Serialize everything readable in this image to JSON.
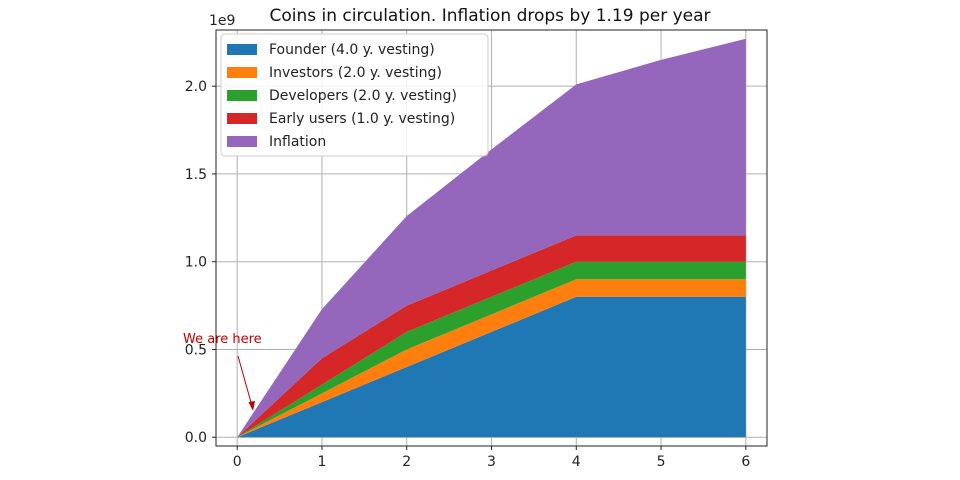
{
  "chart_data": {
    "type": "area",
    "stacked": true,
    "title": "Coins in circulation. Inflation drops by 1.19 per year",
    "y_offset_text": "1e9",
    "xlabel": "",
    "ylabel": "",
    "x": [
      0,
      1,
      2,
      3,
      4,
      5,
      6
    ],
    "xlim": [
      0,
      6
    ],
    "ylim": [
      0,
      2.3
    ],
    "y_scale": 1000000000,
    "x_ticks": [
      "0",
      "1",
      "2",
      "3",
      "4",
      "5",
      "6"
    ],
    "y_ticks": [
      "0.0",
      "0.5",
      "1.0",
      "1.5",
      "2.0"
    ],
    "y_tick_values": [
      0,
      0.5,
      1.0,
      1.5,
      2.0
    ],
    "grid": true,
    "legend_position": "upper-left",
    "series": [
      {
        "name": "Founder (4.0 y. vesting)",
        "color": "#1f77b4",
        "values": [
          0,
          0.2,
          0.4,
          0.6,
          0.8,
          0.8,
          0.8
        ]
      },
      {
        "name": "Investors (2.0 y. vesting)",
        "color": "#ff7f0e",
        "values": [
          0,
          0.05,
          0.1,
          0.1,
          0.1,
          0.1,
          0.1
        ]
      },
      {
        "name": "Developers (2.0 y. vesting)",
        "color": "#2ca02c",
        "values": [
          0,
          0.05,
          0.1,
          0.1,
          0.1,
          0.1,
          0.1
        ]
      },
      {
        "name": "Early users (1.0 y. vesting)",
        "color": "#d62728",
        "values": [
          0,
          0.15,
          0.15,
          0.15,
          0.15,
          0.15,
          0.15
        ]
      },
      {
        "name": "Inflation",
        "color": "#9467bd",
        "values": [
          0,
          0.28,
          0.51,
          0.69,
          0.86,
          1.0,
          1.12
        ]
      }
    ],
    "annotation": {
      "text": "We are here",
      "x": 0.2,
      "y": 0.2
    }
  }
}
